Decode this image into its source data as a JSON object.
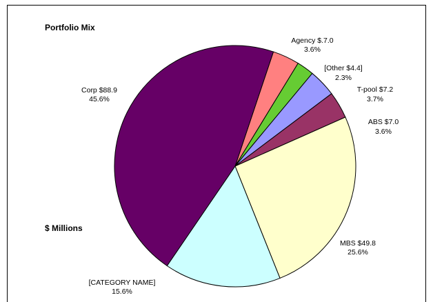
{
  "chart_data": {
    "type": "pie",
    "title": "Portfolio Mix",
    "unit_label": "$ Millions",
    "slices": [
      {
        "name": "Agency",
        "value_text": "$.7.0",
        "value": 7.0,
        "percent": 3.6,
        "percent_text": "3.6%",
        "color": "#ff8080"
      },
      {
        "name": "[Other",
        "value_text": "$4.4]",
        "value": 4.4,
        "percent": 2.3,
        "percent_text": "2.3%",
        "color": "#66cc33"
      },
      {
        "name": "T-pool",
        "value_text": "$7.2",
        "value": 7.2,
        "percent": 3.7,
        "percent_text": "3.7%",
        "color": "#9999ff"
      },
      {
        "name": "ABS",
        "value_text": "$7.0",
        "value": 7.0,
        "percent": 3.6,
        "percent_text": "3.6%",
        "color": "#993366"
      },
      {
        "name": "MBS",
        "value_text": "$49.8",
        "value": 49.8,
        "percent": 25.6,
        "percent_text": "25.6%",
        "color": "#ffffcc"
      },
      {
        "name": "[CATEGORY NAME]",
        "value_text": "",
        "value": null,
        "percent": 15.6,
        "percent_text": "15.6%",
        "color": "#ccffff"
      },
      {
        "name": "Corp",
        "value_text": "$88.9",
        "value": 88.9,
        "percent": 45.6,
        "percent_text": "45.6%",
        "color": "#660066"
      }
    ],
    "labels": {
      "agency": {
        "line1": "Agency $.7.0",
        "line2": "3.6%"
      },
      "other": {
        "line1": "[Other $4.4]",
        "line2": "2.3%"
      },
      "tpool": {
        "line1": "T-pool $7.2",
        "line2": "3.7%"
      },
      "abs": {
        "line1": "ABS $7.0",
        "line2": "3.6%"
      },
      "mbs": {
        "line1": "MBS $49.8",
        "line2": "25.6%"
      },
      "category": {
        "line1": "[CATEGORY NAME]",
        "line2": "15.6%"
      },
      "corp": {
        "line1": "Corp $88.9",
        "line2": "45.6%"
      }
    },
    "legend": "none"
  }
}
